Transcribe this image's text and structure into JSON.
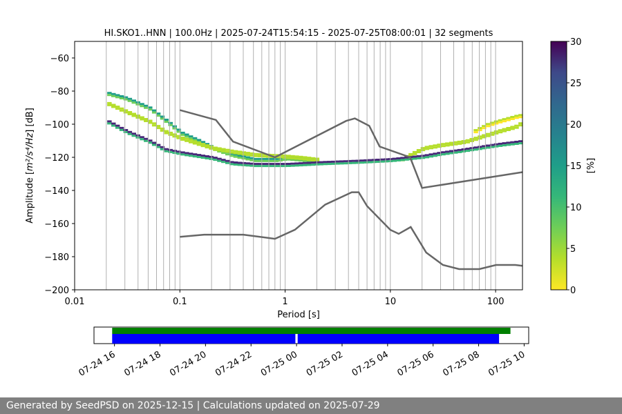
{
  "chart_data": [
    {
      "type": "heatmap",
      "title": "HI.SKO1..HNN | 100.0Hz | 2025-07-24T15:54:15 - 2025-07-25T08:00:01 | 32 segments",
      "xlabel": "Period [s]",
      "ylabel_prefix": "Amplitude [",
      "ylabel_math": "m²/s⁴/Hz",
      "ylabel_suffix": "] [dB]",
      "x_scale": "log",
      "xlim": [
        0.01,
        180
      ],
      "ylim": [
        -200,
        -50
      ],
      "xticks": [
        0.01,
        0.1,
        1,
        10,
        100
      ],
      "xtick_labels": [
        "0.01",
        "0.1",
        "1",
        "10",
        "100"
      ],
      "yticks": [
        -60,
        -80,
        -100,
        -120,
        -140,
        -160,
        -180,
        -200
      ],
      "ytick_labels": [
        "−60",
        "−80",
        "−100",
        "−120",
        "−140",
        "−160",
        "−180",
        "−200"
      ],
      "grid_x_periods": [
        0.02,
        0.03,
        0.04,
        0.05,
        0.06,
        0.07,
        0.08,
        0.09,
        0.1,
        0.2,
        0.3,
        0.4,
        0.5,
        0.6,
        0.7,
        0.8,
        0.9,
        1,
        2,
        3,
        4,
        5,
        6,
        7,
        8,
        9,
        10,
        20,
        30,
        40,
        50,
        60,
        70,
        80,
        90,
        100
      ],
      "colorbar": {
        "label": "[%]",
        "range": [
          0,
          30
        ],
        "ticks": [
          0,
          5,
          10,
          15,
          20,
          25,
          30
        ],
        "tick_labels": [
          "0",
          "5",
          "10",
          "15",
          "20",
          "25",
          "30"
        ],
        "colormap": "viridis_r"
      },
      "noise_models": [
        {
          "name": "",
          "periods": [
            0.1,
            0.22,
            0.32,
            0.8,
            3.8,
            4.6,
            6.3,
            7.9,
            15.4,
            20,
            354.8
          ],
          "values_db": [
            -91.5,
            -97.4,
            -110.5,
            -120.0,
            -98.0,
            -96.5,
            -101.0,
            -113.5,
            -120.0,
            -138.5,
            -126.0
          ]
        },
        {
          "name": "",
          "periods": [
            0.1,
            0.17,
            0.4,
            0.8,
            1.24,
            2.4,
            4.3,
            5.0,
            6.0,
            10.0,
            12.0,
            15.6,
            21.9,
            31.6,
            45.0,
            70.0,
            101.0,
            154.0,
            328.0
          ],
          "values_db": [
            -168.0,
            -166.7,
            -166.7,
            -169.2,
            -163.7,
            -148.6,
            -141.1,
            -141.1,
            -149.4,
            -163.8,
            -166.2,
            -162.1,
            -177.5,
            -185.0,
            -187.5,
            -187.5,
            -185.0,
            -185.0,
            -187.5
          ]
        }
      ],
      "dominant_mode": {
        "periods": [
          0.02,
          0.03,
          0.05,
          0.07,
          0.1,
          0.2,
          0.3,
          0.5,
          1,
          2,
          5,
          10,
          20,
          30,
          50,
          100,
          180
        ],
        "values_db": [
          -98,
          -104,
          -110,
          -115,
          -117,
          -120,
          -123,
          -124,
          -124,
          -123,
          -122,
          -121,
          -119,
          -117,
          -115,
          -112,
          -110
        ],
        "percent": 25
      },
      "secondary_modes": [
        {
          "periods": [
            0.02,
            0.03,
            0.05,
            0.07,
            0.1,
            0.15,
            0.2,
            0.3,
            0.5,
            0.8,
            1,
            1.5,
            2
          ],
          "values_db": [
            -81,
            -84,
            -90,
            -97,
            -105,
            -110,
            -114,
            -118,
            -121,
            -121,
            -120,
            -121,
            -122
          ],
          "percent": 12
        },
        {
          "periods": [
            0.02,
            0.03,
            0.05,
            0.07,
            0.1,
            0.2,
            0.3,
            0.5,
            1,
            1.5,
            2
          ],
          "values_db": [
            -87,
            -92,
            -98,
            -104,
            -108,
            -114,
            -116,
            -118,
            -119,
            -120,
            -121
          ],
          "percent": 4
        },
        {
          "periods": [
            12,
            20,
            30,
            50,
            80,
            100,
            150,
            180
          ],
          "values_db": [
            -121,
            -114,
            -112,
            -110,
            -106,
            -104,
            -101,
            -98
          ],
          "percent": 5
        },
        {
          "periods": [
            60,
            80,
            100,
            150,
            180
          ],
          "values_db": [
            -104,
            -100,
            -98,
            -95,
            -94
          ],
          "percent": 2
        }
      ]
    },
    {
      "type": "timeline",
      "tick_labels": [
        "07-24 16",
        "07-24 18",
        "07-24 20",
        "07-24 22",
        "07-25 00",
        "07-25 02",
        "07-25 04",
        "07-25 06",
        "07-25 08",
        "07-25 10"
      ],
      "tick_hours": [
        16,
        18,
        20,
        22,
        24,
        26,
        28,
        30,
        32,
        34
      ],
      "xlim_hours": [
        15.1,
        34.2
      ],
      "bars": [
        {
          "color": "#008000",
          "start_hour": 15.9,
          "end_hour": 33.4
        },
        {
          "color": "#0000ff",
          "start_hour": 15.9,
          "end_hour": 23.95
        },
        {
          "color": "#0000ff",
          "start_hour": 24.05,
          "end_hour": 32.9
        }
      ]
    }
  ],
  "footer": {
    "text": "Generated by SeedPSD on 2025-12-15 | Calculations updated on 2025-07-29"
  }
}
